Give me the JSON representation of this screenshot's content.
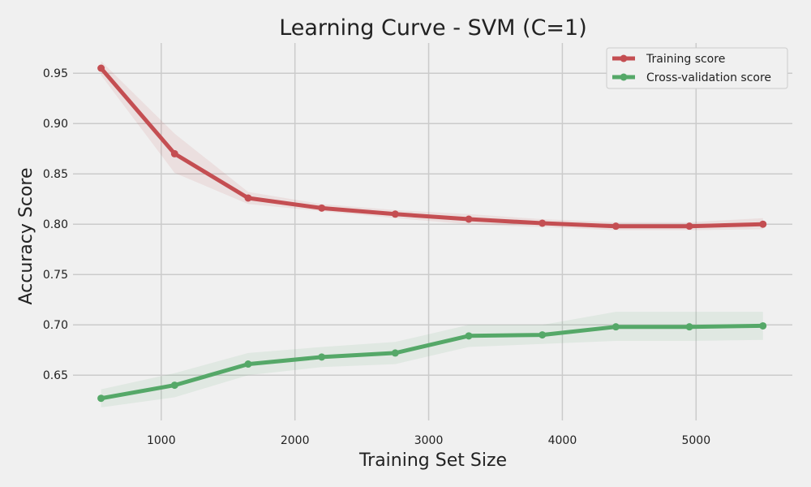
{
  "chart_data": {
    "type": "line",
    "title": "Learning Curve - SVM (C=1)",
    "xlabel": "Training Set Size",
    "ylabel": "Accuracy Score",
    "xlim": [
      340,
      5720
    ],
    "ylim": [
      0.605,
      0.98
    ],
    "xticks": [
      1000,
      2000,
      3000,
      4000,
      5000
    ],
    "yticks": [
      0.65,
      0.7,
      0.75,
      0.8,
      0.85,
      0.9,
      0.95
    ],
    "grid": true,
    "legend_position": "top-right",
    "x": [
      550,
      1100,
      1650,
      2200,
      2750,
      3300,
      3850,
      4400,
      4950,
      5500
    ],
    "series": [
      {
        "name": "Training score",
        "color": "#c44e52",
        "values": [
          0.955,
          0.87,
          0.826,
          0.816,
          0.81,
          0.805,
          0.801,
          0.798,
          0.798,
          0.8
        ],
        "band_lower": [
          0.948,
          0.851,
          0.82,
          0.813,
          0.806,
          0.8,
          0.797,
          0.794,
          0.794,
          0.795
        ],
        "band_upper": [
          0.962,
          0.89,
          0.832,
          0.82,
          0.814,
          0.81,
          0.805,
          0.802,
          0.802,
          0.806
        ]
      },
      {
        "name": "Cross-validation score",
        "color": "#55a868",
        "values": [
          0.627,
          0.64,
          0.661,
          0.668,
          0.672,
          0.689,
          0.69,
          0.698,
          0.698,
          0.699
        ],
        "band_lower": [
          0.618,
          0.628,
          0.65,
          0.658,
          0.661,
          0.678,
          0.681,
          0.684,
          0.684,
          0.685
        ],
        "band_upper": [
          0.636,
          0.652,
          0.672,
          0.678,
          0.683,
          0.7,
          0.7,
          0.713,
          0.713,
          0.713
        ]
      }
    ]
  }
}
